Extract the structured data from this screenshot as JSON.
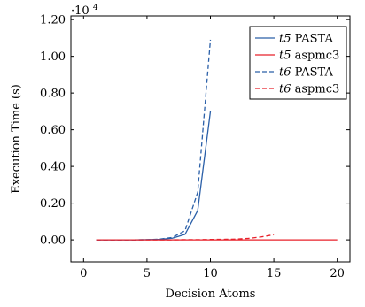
{
  "chart_data": {
    "type": "line",
    "xlabel": "Decision Atoms",
    "ylabel": "Execution Time (s)",
    "y_multiplier": "·10",
    "y_multiplier_exp": "4",
    "y_scale": 10000,
    "xlim": [
      -1,
      21
    ],
    "ylim": [
      -0.12,
      1.22
    ],
    "xticks": [
      0,
      5,
      10,
      15,
      20
    ],
    "yticks": [
      0.0,
      0.2,
      0.4,
      0.6,
      0.8,
      1.0,
      1.2
    ],
    "ytick_labels": [
      "0.00",
      "0.20",
      "0.40",
      "0.60",
      "0.80",
      "1.00",
      "1.20"
    ],
    "grid": false,
    "legend_position": "top-right",
    "series": [
      {
        "name_var": "t5",
        "name_rest": " PASTA",
        "color": "#2a5fa8",
        "dash": "solid",
        "x": [
          1,
          2,
          3,
          4,
          5,
          6,
          7,
          8,
          9,
          10
        ],
        "y": [
          0,
          0,
          0,
          0,
          0.001,
          0.003,
          0.009,
          0.03,
          0.16,
          0.7
        ]
      },
      {
        "name_var": "t5",
        "name_rest": " aspmc3",
        "color": "#e8202a",
        "dash": "solid",
        "x": [
          1,
          2,
          3,
          4,
          5,
          6,
          7,
          8,
          9,
          10,
          11,
          12,
          13,
          14,
          15,
          16,
          17,
          18,
          19,
          20
        ],
        "y": [
          0,
          0,
          0,
          0,
          0,
          0,
          0,
          0,
          0,
          0,
          0,
          0,
          0,
          0,
          0,
          0,
          0,
          0,
          0,
          0
        ]
      },
      {
        "name_var": "t6",
        "name_rest": " PASTA",
        "color": "#2a5fa8",
        "dash": "dashed",
        "x": [
          1,
          2,
          3,
          4,
          5,
          6,
          7,
          8,
          9,
          10
        ],
        "y": [
          0,
          0,
          0,
          0,
          0.001,
          0.004,
          0.013,
          0.05,
          0.26,
          1.09
        ]
      },
      {
        "name_var": "t6",
        "name_rest": " aspmc3",
        "color": "#e8202a",
        "dash": "dashed",
        "x": [
          1,
          2,
          3,
          4,
          5,
          6,
          7,
          8,
          9,
          10,
          11,
          12,
          13,
          14,
          15
        ],
        "y": [
          0,
          0,
          0,
          0,
          0,
          0,
          0,
          0.001,
          0.001,
          0.002,
          0.003,
          0.004,
          0.008,
          0.016,
          0.028
        ]
      }
    ]
  }
}
